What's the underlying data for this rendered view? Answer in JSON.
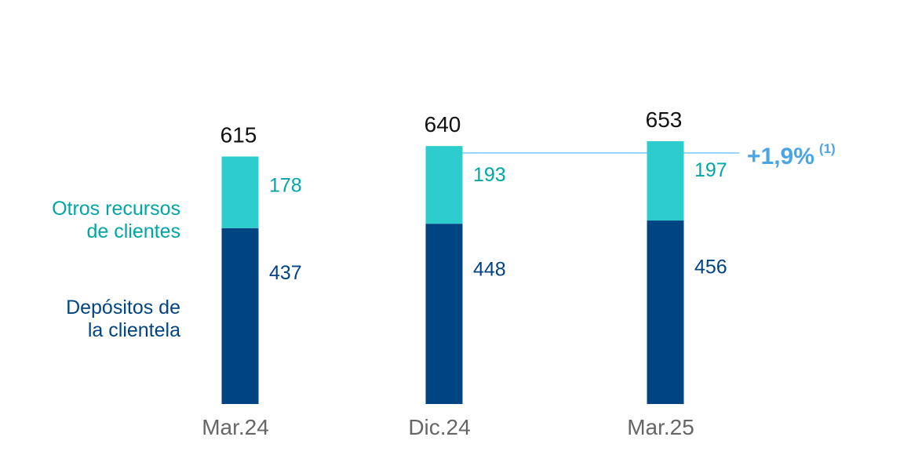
{
  "chart_data": {
    "type": "bar",
    "stacked": true,
    "categories": [
      "Mar.24",
      "Dic.24",
      "Mar.25"
    ],
    "series": [
      {
        "name": "Depósitos de la clientela",
        "values": [
          437,
          448,
          456
        ],
        "color": "#004481"
      },
      {
        "name": "Otros recursos de clientes",
        "values": [
          178,
          193,
          197
        ],
        "color": "#2DCCCD"
      }
    ],
    "totals": [
      615,
      640,
      653
    ],
    "ylim": [
      0,
      653
    ],
    "legend_placement": "left",
    "grid": false
  },
  "legend": {
    "other_line1": "Otros recursos",
    "other_line2": "de clientes",
    "deposits_line1": "Depósitos de",
    "deposits_line2": "la clientela"
  },
  "annotation": {
    "growth": "+1,9%",
    "note": "(1)",
    "color": "#49A5E6"
  },
  "colors": {
    "other_label": "#02A5A5",
    "deposits_label": "#004481",
    "total_label": "#121212",
    "axis_label": "#666666",
    "reference_line": "#5BBEFF"
  }
}
